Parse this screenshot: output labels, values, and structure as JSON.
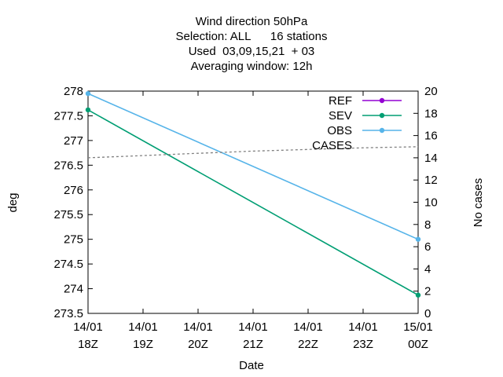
{
  "chart_data": {
    "type": "line",
    "title_lines": [
      "Wind direction 50hPa",
      "Selection: ALL      16 stations",
      "Used  03,09,15,21  + 03",
      "Averaging window: 12h"
    ],
    "xlabel": "Date",
    "ylabel": "deg",
    "y2label": "No cases",
    "x_ticks": [
      {
        "top": "14/01",
        "bottom": "18Z"
      },
      {
        "top": "14/01",
        "bottom": "19Z"
      },
      {
        "top": "14/01",
        "bottom": "20Z"
      },
      {
        "top": "14/01",
        "bottom": "21Z"
      },
      {
        "top": "14/01",
        "bottom": "22Z"
      },
      {
        "top": "14/01",
        "bottom": "23Z"
      },
      {
        "top": "15/01",
        "bottom": "00Z"
      }
    ],
    "xlim": [
      0,
      6
    ],
    "ylim": [
      273.5,
      278
    ],
    "y_ticks": [
      "273.5",
      "274",
      "274.5",
      "275",
      "275.5",
      "276",
      "276.5",
      "277",
      "277.5",
      "278"
    ],
    "y2lim": [
      0,
      20
    ],
    "y2_ticks": [
      "0",
      "2",
      "4",
      "6",
      "8",
      "10",
      "12",
      "14",
      "16",
      "18",
      "20"
    ],
    "grid": false,
    "legend_position": "top-right",
    "series": [
      {
        "name": "REF",
        "color": "#9400d3",
        "axis": "y",
        "style": "line-points",
        "x": [],
        "values": []
      },
      {
        "name": "SEV",
        "color": "#009e73",
        "axis": "y",
        "style": "line-points",
        "x": [
          0,
          6
        ],
        "values": [
          277.62,
          273.87
        ]
      },
      {
        "name": "OBS",
        "color": "#56b4e9",
        "axis": "y",
        "style": "line-points",
        "x": [
          0,
          6
        ],
        "values": [
          277.95,
          275.0
        ]
      },
      {
        "name": "CASES",
        "color": "#808080",
        "axis": "y2",
        "style": "dashed",
        "x": [
          0,
          1,
          2,
          3,
          4,
          5,
          6
        ],
        "values": [
          14,
          14.2,
          14.4,
          14.6,
          14.75,
          14.9,
          15
        ]
      }
    ]
  }
}
